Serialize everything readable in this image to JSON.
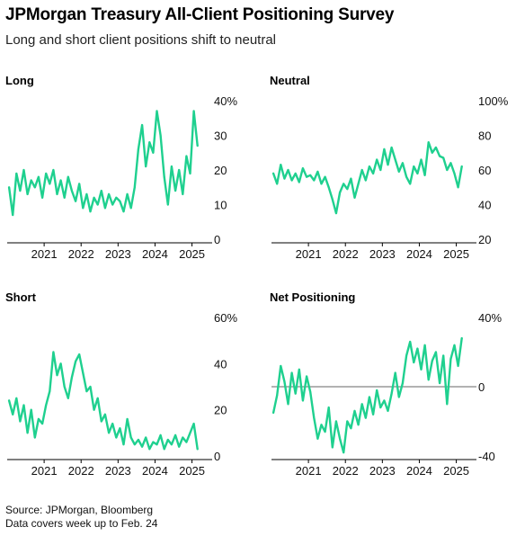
{
  "header": {
    "title": "JPMorgan Treasury All-Client Positioning Survey",
    "subtitle": "Long and short client positions shift to neutral"
  },
  "footer": {
    "source": "Source: JPMorgan, Bloomberg",
    "note": "Data covers week up to Feb. 24"
  },
  "colors": {
    "line": "#1fd08f",
    "axis": "#000000",
    "zero_line": "#666666"
  },
  "chart_data": [
    {
      "id": "long",
      "type": "line",
      "title": "Long",
      "ylim": [
        0,
        40
      ],
      "yticks": [
        0,
        10,
        20,
        30,
        40
      ],
      "ytick_labels": [
        "0",
        "10",
        "20",
        "30",
        "40%"
      ],
      "xlim": [
        2020.0,
        2025.4
      ],
      "xticks": [
        2021,
        2022,
        2023,
        2024,
        2025
      ],
      "xtick_labels": [
        "2021",
        "2022",
        "2023",
        "2024",
        "2025"
      ],
      "zero_line": false,
      "x": [
        2020.05,
        2020.15,
        2020.25,
        2020.35,
        2020.45,
        2020.55,
        2020.65,
        2020.75,
        2020.85,
        2020.95,
        2021.05,
        2021.15,
        2021.25,
        2021.35,
        2021.45,
        2021.55,
        2021.65,
        2021.75,
        2021.85,
        2021.95,
        2022.05,
        2022.15,
        2022.25,
        2022.35,
        2022.45,
        2022.55,
        2022.65,
        2022.75,
        2022.85,
        2022.95,
        2023.05,
        2023.15,
        2023.25,
        2023.35,
        2023.45,
        2023.55,
        2023.65,
        2023.75,
        2023.85,
        2023.95,
        2024.05,
        2024.15,
        2024.25,
        2024.35,
        2024.45,
        2024.55,
        2024.65,
        2024.75,
        2024.85,
        2024.95,
        2025.05,
        2025.15
      ],
      "values": [
        15,
        7,
        19,
        14,
        20,
        13,
        17,
        15,
        18,
        12,
        19,
        16,
        20,
        13,
        17,
        12,
        18,
        14,
        11,
        16,
        9,
        13,
        8,
        12,
        10,
        14,
        9,
        13,
        10,
        12,
        11,
        8,
        13,
        9,
        15,
        26,
        33,
        21,
        28,
        25,
        37,
        30,
        18,
        10,
        21,
        14,
        20,
        13,
        24,
        19,
        37,
        27
      ]
    },
    {
      "id": "neutral",
      "type": "line",
      "title": "Neutral",
      "ylim": [
        20,
        100
      ],
      "yticks": [
        20,
        40,
        60,
        80,
        100
      ],
      "ytick_labels": [
        "20",
        "40",
        "60",
        "80",
        "100%"
      ],
      "xlim": [
        2020.0,
        2025.4
      ],
      "xticks": [
        2021,
        2022,
        2023,
        2024,
        2025
      ],
      "xtick_labels": [
        "2021",
        "2022",
        "2023",
        "2024",
        "2025"
      ],
      "zero_line": false,
      "x": [
        2020.05,
        2020.15,
        2020.25,
        2020.35,
        2020.45,
        2020.55,
        2020.65,
        2020.75,
        2020.85,
        2020.95,
        2021.05,
        2021.15,
        2021.25,
        2021.35,
        2021.45,
        2021.55,
        2021.65,
        2021.75,
        2021.85,
        2021.95,
        2022.05,
        2022.15,
        2022.25,
        2022.35,
        2022.45,
        2022.55,
        2022.65,
        2022.75,
        2022.85,
        2022.95,
        2023.05,
        2023.15,
        2023.25,
        2023.35,
        2023.45,
        2023.55,
        2023.65,
        2023.75,
        2023.85,
        2023.95,
        2024.05,
        2024.15,
        2024.25,
        2024.35,
        2024.45,
        2024.55,
        2024.65,
        2024.75,
        2024.85,
        2024.95,
        2025.05,
        2025.15
      ],
      "values": [
        58,
        52,
        63,
        55,
        60,
        54,
        58,
        53,
        61,
        56,
        57,
        54,
        59,
        52,
        56,
        50,
        43,
        35,
        47,
        52,
        49,
        55,
        44,
        52,
        60,
        54,
        62,
        58,
        66,
        60,
        72,
        63,
        73,
        66,
        59,
        64,
        56,
        52,
        62,
        58,
        66,
        57,
        76,
        70,
        73,
        68,
        67,
        60,
        64,
        58,
        50,
        62
      ]
    },
    {
      "id": "short",
      "type": "line",
      "title": "Short",
      "ylim": [
        0,
        60
      ],
      "yticks": [
        0,
        20,
        40,
        60
      ],
      "ytick_labels": [
        "0",
        "20",
        "40",
        "60%"
      ],
      "xlim": [
        2020.0,
        2025.4
      ],
      "xticks": [
        2021,
        2022,
        2023,
        2024,
        2025
      ],
      "xtick_labels": [
        "2021",
        "2022",
        "2023",
        "2024",
        "2025"
      ],
      "zero_line": false,
      "x": [
        2020.05,
        2020.15,
        2020.25,
        2020.35,
        2020.45,
        2020.55,
        2020.65,
        2020.75,
        2020.85,
        2020.95,
        2021.05,
        2021.15,
        2021.25,
        2021.35,
        2021.45,
        2021.55,
        2021.65,
        2021.75,
        2021.85,
        2021.95,
        2022.05,
        2022.15,
        2022.25,
        2022.35,
        2022.45,
        2022.55,
        2022.65,
        2022.75,
        2022.85,
        2022.95,
        2023.05,
        2023.15,
        2023.25,
        2023.35,
        2023.45,
        2023.55,
        2023.65,
        2023.75,
        2023.85,
        2023.95,
        2024.05,
        2024.15,
        2024.25,
        2024.35,
        2024.45,
        2024.55,
        2024.65,
        2024.75,
        2024.85,
        2024.95,
        2025.05,
        2025.15
      ],
      "values": [
        24,
        18,
        25,
        15,
        22,
        10,
        20,
        8,
        16,
        14,
        22,
        28,
        45,
        35,
        40,
        30,
        25,
        34,
        41,
        44,
        36,
        28,
        30,
        20,
        25,
        15,
        18,
        10,
        14,
        8,
        12,
        5,
        16,
        8,
        5,
        7,
        4,
        8,
        3,
        6,
        5,
        9,
        3,
        7,
        5,
        9,
        4,
        8,
        6,
        10,
        14,
        3
      ]
    },
    {
      "id": "net_positioning",
      "type": "line",
      "title": "Net Positioning",
      "ylim": [
        -40,
        40
      ],
      "yticks": [
        -40,
        0,
        40
      ],
      "ytick_labels": [
        "-40",
        "0",
        "40%"
      ],
      "xlim": [
        2020.0,
        2025.4
      ],
      "xticks": [
        2021,
        2022,
        2023,
        2024,
        2025
      ],
      "xtick_labels": [
        "2021",
        "2022",
        "2023",
        "2024",
        "2025"
      ],
      "zero_line": true,
      "x": [
        2020.05,
        2020.15,
        2020.25,
        2020.35,
        2020.45,
        2020.55,
        2020.65,
        2020.75,
        2020.85,
        2020.95,
        2021.05,
        2021.15,
        2021.25,
        2021.35,
        2021.45,
        2021.55,
        2021.65,
        2021.75,
        2021.85,
        2021.95,
        2022.05,
        2022.15,
        2022.25,
        2022.35,
        2022.45,
        2022.55,
        2022.65,
        2022.75,
        2022.85,
        2022.95,
        2023.05,
        2023.15,
        2023.25,
        2023.35,
        2023.45,
        2023.55,
        2023.65,
        2023.75,
        2023.85,
        2023.95,
        2024.05,
        2024.15,
        2024.25,
        2024.35,
        2024.45,
        2024.55,
        2024.65,
        2024.75,
        2024.85,
        2024.95,
        2025.05,
        2025.15
      ],
      "values": [
        -15,
        -5,
        12,
        3,
        -10,
        8,
        -4,
        10,
        -8,
        6,
        -3,
        -18,
        -30,
        -22,
        -26,
        -12,
        -35,
        -20,
        -30,
        -38,
        -20,
        -24,
        -14,
        -22,
        -10,
        -18,
        -6,
        -16,
        -2,
        -12,
        -8,
        -14,
        -4,
        8,
        -6,
        2,
        18,
        26,
        14,
        22,
        10,
        24,
        4,
        15,
        20,
        2,
        18,
        -10,
        16,
        24,
        12,
        28
      ]
    }
  ]
}
